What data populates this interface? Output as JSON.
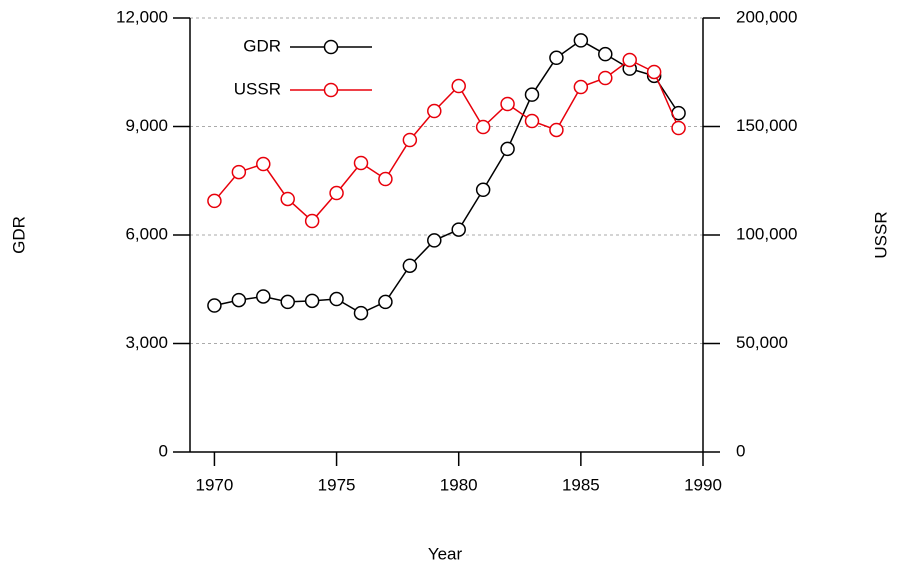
{
  "chart_data": {
    "type": "line",
    "x_label": "Year",
    "y_label": "GDR",
    "y2_label": "USSR",
    "x": [
      1970,
      1971,
      1972,
      1973,
      1974,
      1975,
      1976,
      1977,
      1978,
      1979,
      1980,
      1981,
      1982,
      1983,
      1984,
      1985,
      1986,
      1987,
      1988,
      1989
    ],
    "series": [
      {
        "name": "GDR",
        "color": "#000000",
        "values": [
          4050,
          4200,
          4300,
          4150,
          4180,
          4230,
          3840,
          4150,
          5150,
          5850,
          6150,
          7250,
          8380,
          9880,
          10900,
          11380,
          11000,
          10600,
          10400,
          9370
        ]
      },
      {
        "name": "USSR",
        "color": "#e8000b",
        "axis": "y2",
        "values": [
          115700,
          129000,
          132700,
          116600,
          106450,
          119350,
          133180,
          125800,
          143780,
          157140,
          168660,
          149770,
          160370,
          152530,
          148390,
          168200,
          172350,
          180650,
          175120,
          149310
        ]
      }
    ],
    "xlim": [
      1969,
      1990
    ],
    "xticks": [
      1970,
      1975,
      1980,
      1985,
      1990
    ],
    "ylim": [
      0,
      12000
    ],
    "yticks": [
      0,
      {
        "value": 3000,
        "label": "3,000"
      },
      {
        "value": 6000,
        "label": "6,000"
      },
      {
        "value": 9000,
        "label": "9,000"
      },
      {
        "value": 12000,
        "label": "12,000"
      }
    ],
    "y2lim": [
      0,
      200000
    ],
    "y2ticks": [
      0,
      {
        "value": 50000,
        "label": "50,000"
      },
      {
        "value": 100000,
        "label": "100,000"
      },
      {
        "value": 150000,
        "label": "150,000"
      },
      {
        "value": 200000,
        "label": "200,000"
      }
    ],
    "grid": true,
    "legend": "upper left"
  }
}
